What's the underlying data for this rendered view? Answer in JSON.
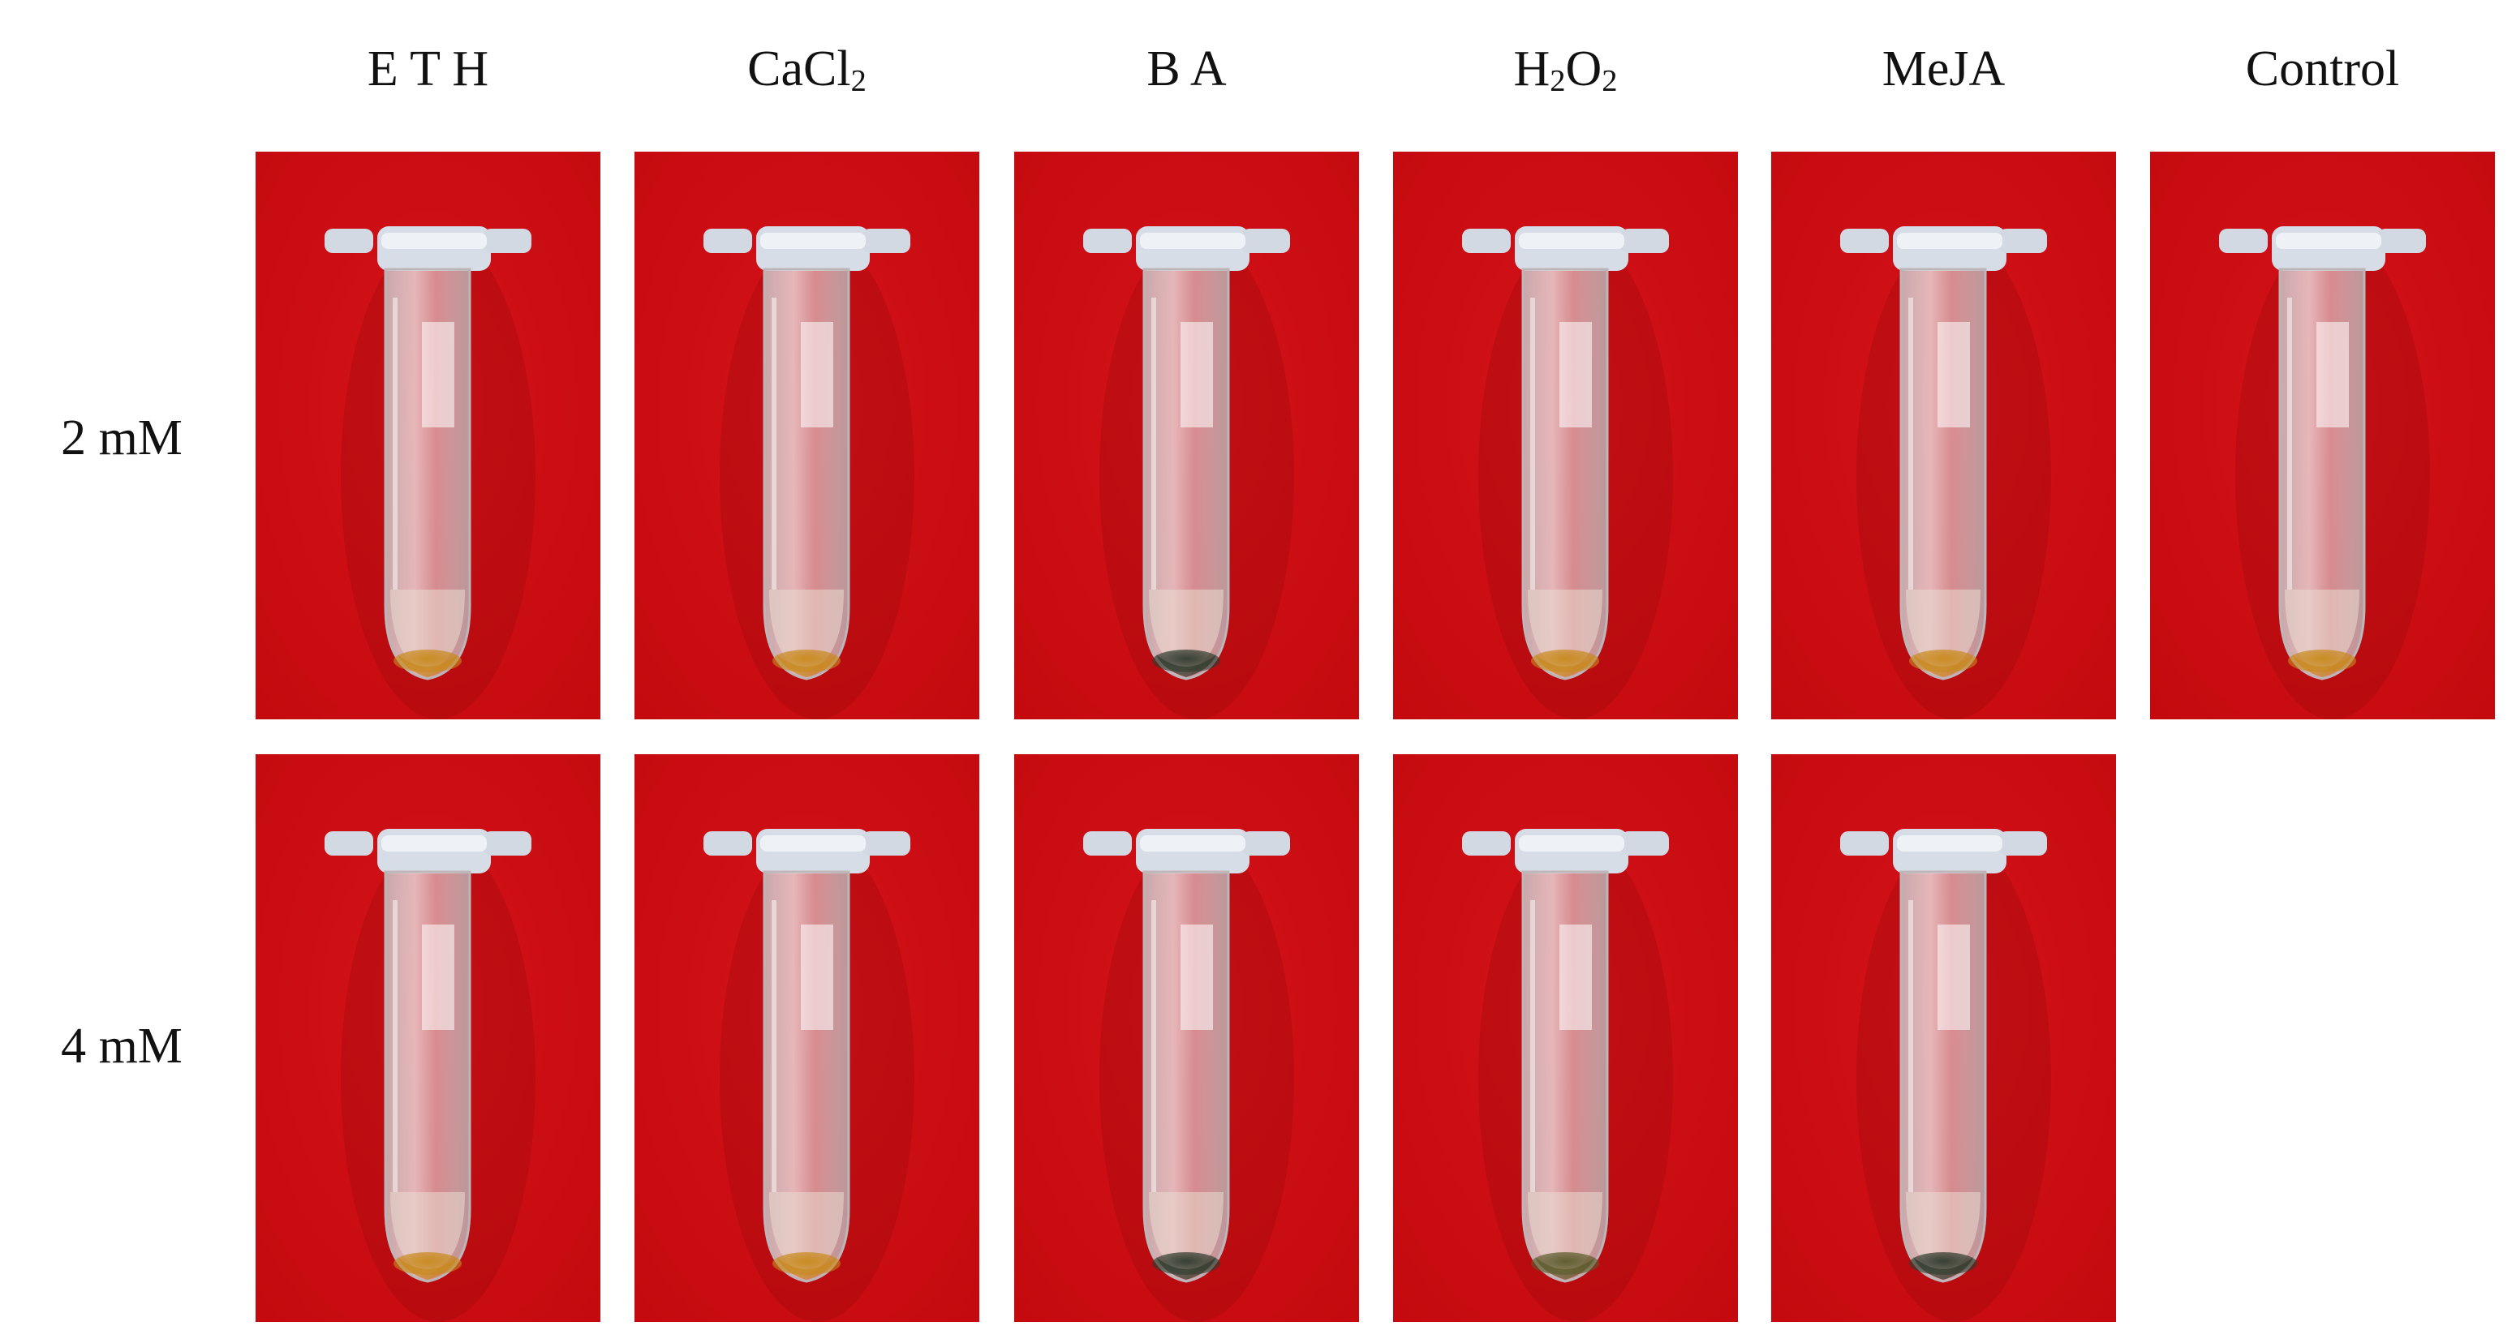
{
  "columns": [
    {
      "id": "eth",
      "label_parts": [
        {
          "t": "E T H"
        }
      ]
    },
    {
      "id": "cacl2",
      "label_parts": [
        {
          "t": "CaCl"
        },
        {
          "t": "2",
          "sub": true
        }
      ]
    },
    {
      "id": "ba",
      "label_parts": [
        {
          "t": "B A"
        }
      ]
    },
    {
      "id": "h2o2",
      "label_parts": [
        {
          "t": "H"
        },
        {
          "t": "2",
          "sub": true
        },
        {
          "t": "O"
        },
        {
          "t": "2",
          "sub": true
        }
      ]
    },
    {
      "id": "meja",
      "label_parts": [
        {
          "t": "MeJA"
        }
      ]
    },
    {
      "id": "control",
      "label_parts": [
        {
          "t": "Control"
        }
      ]
    }
  ],
  "rows": [
    {
      "id": "2mm",
      "label": "2 mM"
    },
    {
      "id": "4mm",
      "label": "4 mM"
    }
  ],
  "colors": {
    "background": "#c40a0e",
    "tube": "#e4e6ea",
    "sediment_orange": "#c8891c",
    "sediment_dark": "#2e3a2c",
    "sediment_olive": "#5a5a2a"
  },
  "panels": [
    {
      "row": "2mm",
      "col": "eth",
      "sediment": "orange"
    },
    {
      "row": "2mm",
      "col": "cacl2",
      "sediment": "orange"
    },
    {
      "row": "2mm",
      "col": "ba",
      "sediment": "dark"
    },
    {
      "row": "2mm",
      "col": "h2o2",
      "sediment": "orange"
    },
    {
      "row": "2mm",
      "col": "meja",
      "sediment": "orange"
    },
    {
      "row": "2mm",
      "col": "control",
      "sediment": "orange"
    },
    {
      "row": "4mm",
      "col": "eth",
      "sediment": "orange"
    },
    {
      "row": "4mm",
      "col": "cacl2",
      "sediment": "orange"
    },
    {
      "row": "4mm",
      "col": "ba",
      "sediment": "dark"
    },
    {
      "row": "4mm",
      "col": "h2o2",
      "sediment": "olive"
    },
    {
      "row": "4mm",
      "col": "meja",
      "sediment": "dark"
    }
  ]
}
